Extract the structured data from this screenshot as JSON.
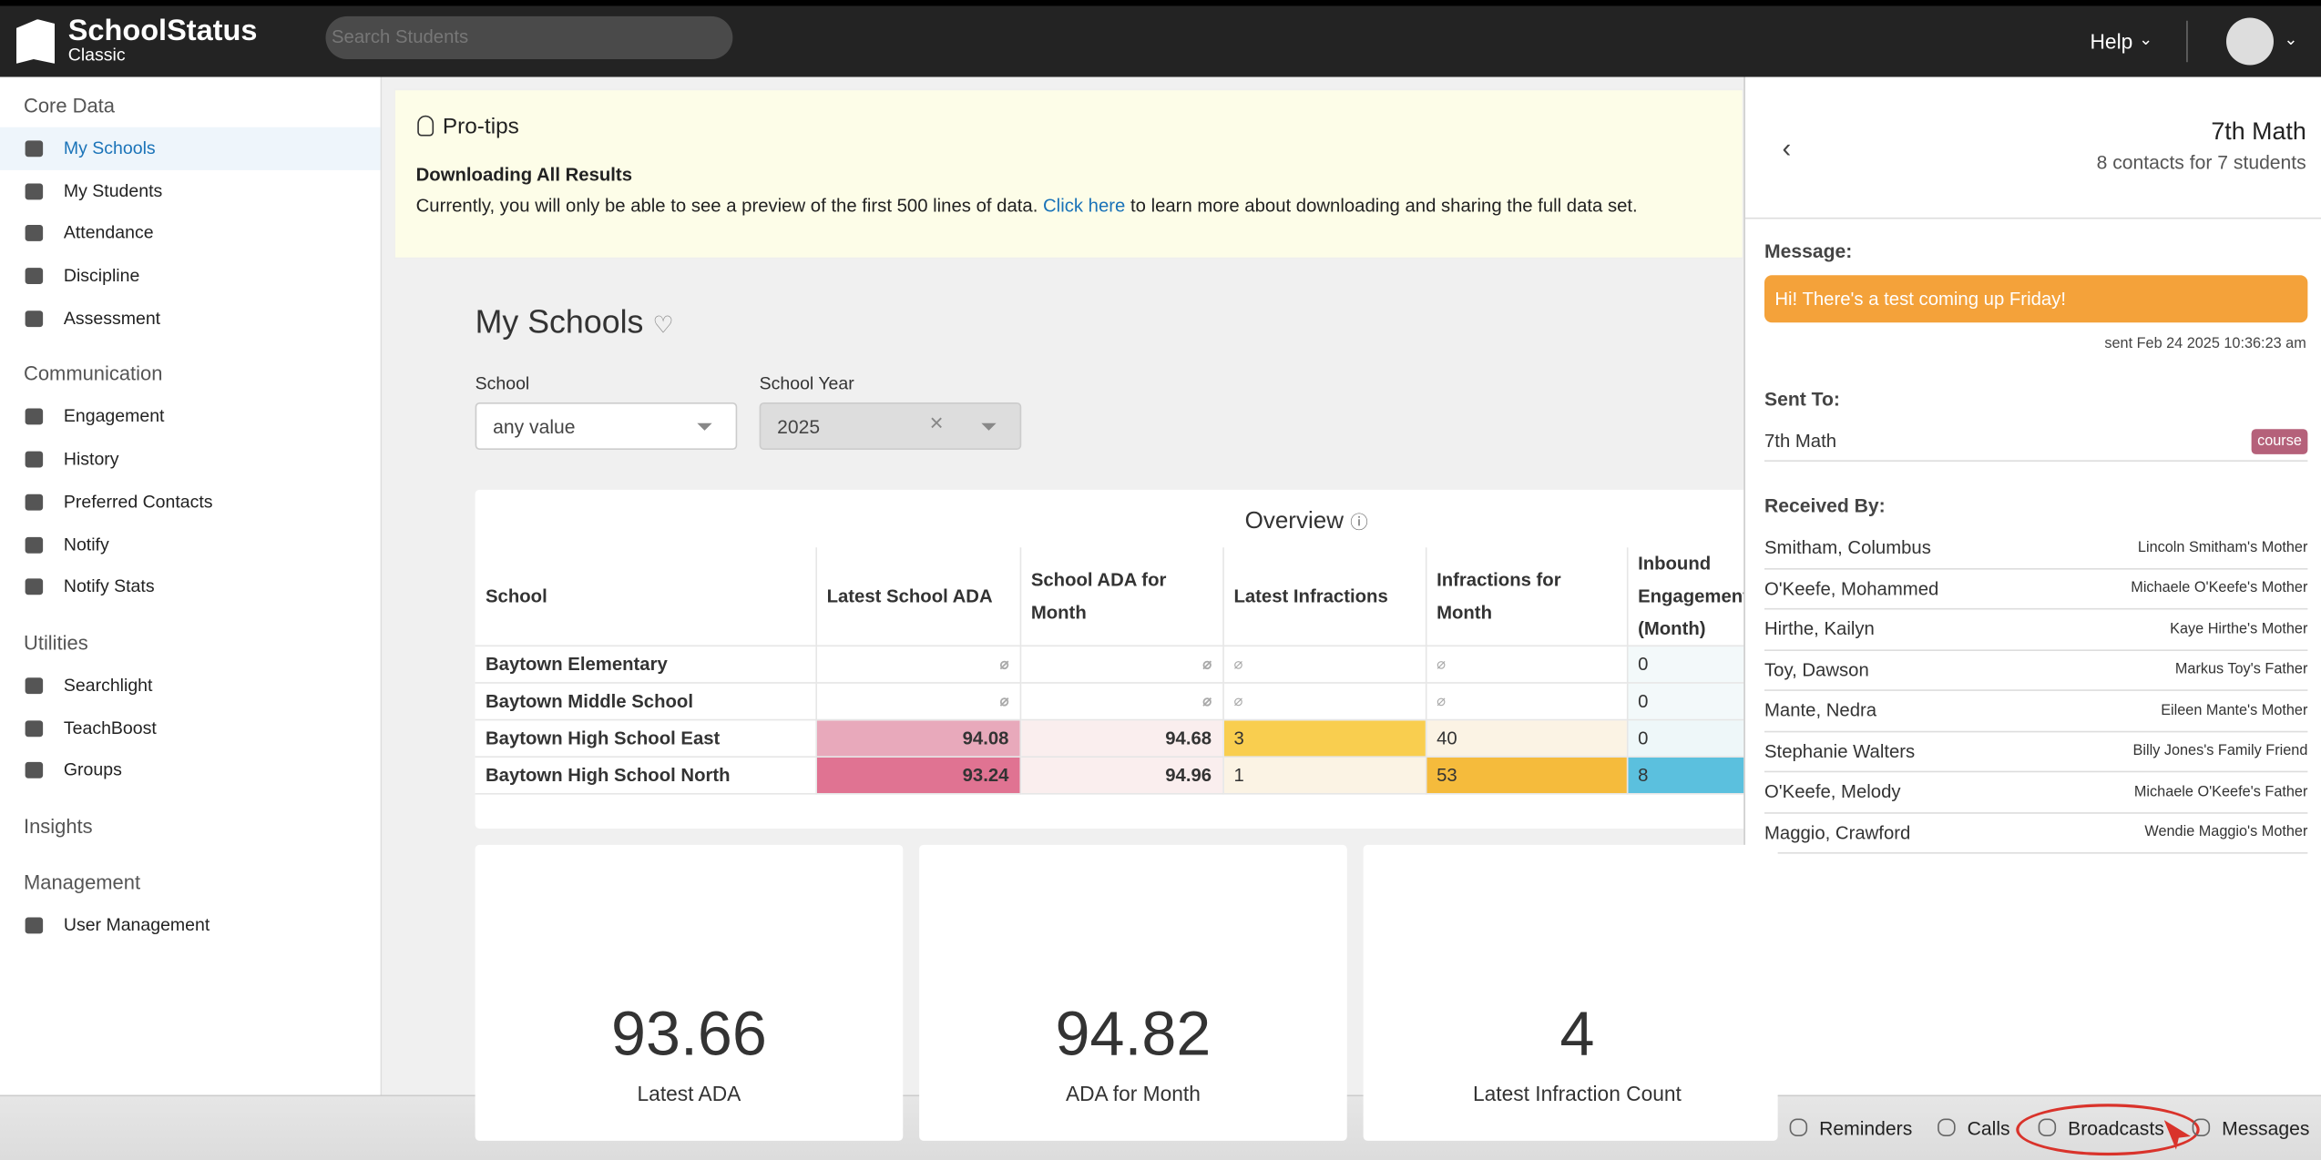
{
  "header": {
    "brand": "SchoolStatus",
    "sub": "Classic",
    "search_placeholder": "Search Students",
    "help": "Help"
  },
  "sidebar": [
    {
      "title": "Core Data",
      "items": [
        "My Schools",
        "My Students",
        "Attendance",
        "Discipline",
        "Assessment"
      ]
    },
    {
      "title": "Communication",
      "items": [
        "Engagement",
        "History",
        "Preferred Contacts",
        "Notify",
        "Notify Stats"
      ]
    },
    {
      "title": "Utilities",
      "items": [
        "Searchlight",
        "TeachBoost",
        "Groups"
      ]
    },
    {
      "title": "Insights",
      "items": []
    },
    {
      "title": "Management",
      "items": [
        "User Management"
      ]
    }
  ],
  "protips": {
    "title": "Pro-tips",
    "heading": "Downloading All Results",
    "text_before": "Currently, you will only be able to see a preview of the first 500 lines of data.",
    "link": "Click here",
    "text_after": "to learn more about downloading and sharing the full data set."
  },
  "page": {
    "title": "My Schools",
    "filters": [
      {
        "label": "School",
        "value": "any value"
      },
      {
        "label": "School Year",
        "value": "2025"
      }
    ]
  },
  "overview": {
    "title": "Overview",
    "columns": [
      "School",
      "Latest School ADA",
      "School ADA for Month",
      "Latest Infractions",
      "Infractions for Month",
      "Inbound Engagement (Month)"
    ],
    "rows": [
      [
        "Baytown Elementary",
        null,
        null,
        null,
        null,
        "0"
      ],
      [
        "Baytown Middle School",
        null,
        null,
        null,
        null,
        "0"
      ],
      [
        "Baytown High School East",
        "94.08",
        "94.68",
        "3",
        "40",
        "0"
      ],
      [
        "Baytown High School North",
        "93.24",
        "94.96",
        "1",
        "53",
        "8"
      ]
    ],
    "colors": [
      [
        "#ffffff",
        "#ffffff",
        "#ffffff",
        "#ffffff",
        "#ffffff",
        "#f3f9fa"
      ],
      [
        "#ffffff",
        "#ffffff",
        "#ffffff",
        "#ffffff",
        "#ffffff",
        "#f3f9fa"
      ],
      [
        "#ffffff",
        "#e8a9bb",
        "#faeeee",
        "#f9ce4f",
        "#fbf3e4",
        "#eef7f9"
      ],
      [
        "#ffffff",
        "#e07392",
        "#faeeee",
        "#fbf3e4",
        "#f5bb3c",
        "#5bc0de"
      ]
    ]
  },
  "kpis": [
    {
      "value": "93.66",
      "label": "Latest ADA"
    },
    {
      "value": "94.82",
      "label": "ADA for Month"
    },
    {
      "value": "4",
      "label": "Latest Infraction Count"
    }
  ],
  "panel": {
    "title": "7th Math",
    "subtitle": "8 contacts for 7 students",
    "message_label": "Message:",
    "message": "Hi! There's a test coming up Friday!",
    "sent": "sent Feb 24 2025 10:36:23 am",
    "sent_to_label": "Sent To:",
    "sent_to": "7th Math",
    "badge": "course",
    "received_label": "Received By:",
    "contacts": [
      [
        "Smitham, Columbus",
        "Lincoln Smitham's Mother"
      ],
      [
        "O'Keefe, Mohammed",
        "Michaele O'Keefe's Mother"
      ],
      [
        "Hirthe, Kailyn",
        "Kaye Hirthe's Mother"
      ],
      [
        "Toy, Dawson",
        "Markus Toy's Father"
      ],
      [
        "Mante, Nedra",
        "Eileen Mante's Mother"
      ],
      [
        "Stephanie Walters",
        "Billy Jones's Family Friend"
      ],
      [
        "O'Keefe, Melody",
        "Michaele O'Keefe's Father"
      ],
      [
        "Maggio, Crawford",
        "Wendie Maggio's Mother"
      ]
    ]
  },
  "bottom_bar": [
    "Reminders",
    "Calls",
    "Broadcasts",
    "Messages"
  ]
}
